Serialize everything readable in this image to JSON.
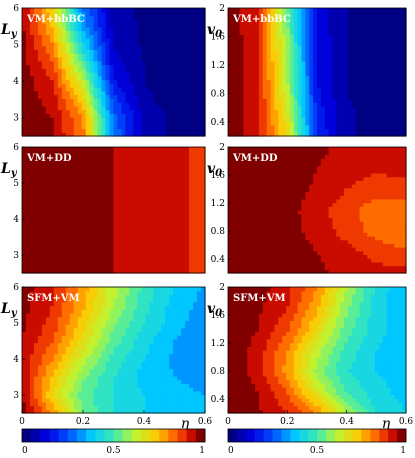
{
  "chart_data": [
    {
      "type": "heatmap",
      "panel": "VM+bbBC",
      "ylabel": "L_y",
      "x": [
        0,
        0.1,
        0.2,
        0.3,
        0.4,
        0.5,
        0.6
      ],
      "y": [
        2.5,
        3,
        3.5,
        4,
        4.5,
        5,
        5.5,
        6
      ],
      "xlim": [
        0,
        0.6
      ],
      "ylim": [
        2.5,
        6
      ],
      "yticks": [
        "3",
        "4",
        "5",
        "6"
      ],
      "z": [
        [
          0.98,
          0.95,
          0.82,
          0.3,
          0.08,
          0.04,
          0.02
        ],
        [
          0.98,
          0.95,
          0.8,
          0.28,
          0.08,
          0.04,
          0.02
        ],
        [
          0.98,
          0.93,
          0.72,
          0.22,
          0.06,
          0.03,
          0.02
        ],
        [
          0.98,
          0.9,
          0.62,
          0.16,
          0.05,
          0.03,
          0.02
        ],
        [
          0.97,
          0.86,
          0.52,
          0.12,
          0.05,
          0.03,
          0.02
        ],
        [
          0.97,
          0.8,
          0.42,
          0.1,
          0.04,
          0.03,
          0.02
        ],
        [
          0.96,
          0.74,
          0.34,
          0.08,
          0.04,
          0.03,
          0.02
        ],
        [
          0.96,
          0.7,
          0.3,
          0.07,
          0.04,
          0.03,
          0.02
        ]
      ]
    },
    {
      "type": "heatmap",
      "panel": "VM+bbBC",
      "ylabel": "v_0",
      "x": [
        0,
        0.1,
        0.2,
        0.3,
        0.4,
        0.5,
        0.6
      ],
      "y": [
        0.2,
        0.5,
        0.8,
        1.1,
        1.4,
        1.7,
        2.0
      ],
      "xlim": [
        0,
        0.6
      ],
      "ylim": [
        0.2,
        2
      ],
      "yticks": [
        "0.4",
        "0.8",
        "1.2",
        "1.6",
        "2"
      ],
      "z": [
        [
          0.99,
          0.92,
          0.7,
          0.2,
          0.06,
          0.03,
          0.02
        ],
        [
          0.99,
          0.92,
          0.66,
          0.18,
          0.06,
          0.03,
          0.02
        ],
        [
          0.99,
          0.92,
          0.62,
          0.16,
          0.05,
          0.03,
          0.02
        ],
        [
          0.99,
          0.91,
          0.6,
          0.15,
          0.05,
          0.03,
          0.02
        ],
        [
          0.99,
          0.91,
          0.58,
          0.15,
          0.05,
          0.03,
          0.02
        ],
        [
          0.99,
          0.9,
          0.56,
          0.14,
          0.05,
          0.03,
          0.02
        ],
        [
          0.99,
          0.9,
          0.55,
          0.14,
          0.05,
          0.03,
          0.02
        ]
      ]
    },
    {
      "type": "heatmap",
      "panel": "VM+DD",
      "ylabel": "L_y",
      "x": [
        0,
        0.1,
        0.2,
        0.3,
        0.4,
        0.5,
        0.6
      ],
      "y": [
        2.5,
        3,
        3.5,
        4,
        4.5,
        5,
        5.5,
        6
      ],
      "xlim": [
        0,
        0.6
      ],
      "ylim": [
        2.5,
        6
      ],
      "yticks": [
        "3",
        "4",
        "5",
        "6"
      ],
      "z": [
        [
          0.99,
          0.98,
          0.97,
          0.95,
          0.93,
          0.91,
          0.89
        ],
        [
          0.99,
          0.98,
          0.97,
          0.95,
          0.93,
          0.91,
          0.89
        ],
        [
          0.99,
          0.98,
          0.97,
          0.95,
          0.93,
          0.91,
          0.89
        ],
        [
          0.99,
          0.98,
          0.97,
          0.95,
          0.93,
          0.91,
          0.89
        ],
        [
          0.99,
          0.98,
          0.97,
          0.95,
          0.93,
          0.91,
          0.89
        ],
        [
          0.99,
          0.98,
          0.97,
          0.95,
          0.93,
          0.91,
          0.89
        ],
        [
          0.99,
          0.98,
          0.97,
          0.95,
          0.93,
          0.91,
          0.89
        ],
        [
          0.99,
          0.98,
          0.97,
          0.95,
          0.93,
          0.91,
          0.89
        ]
      ]
    },
    {
      "type": "heatmap",
      "panel": "VM+DD",
      "ylabel": "v_0",
      "x": [
        0,
        0.1,
        0.2,
        0.3,
        0.4,
        0.5,
        0.6
      ],
      "y": [
        0.2,
        0.5,
        0.8,
        1.1,
        1.4,
        1.7,
        2.0
      ],
      "xlim": [
        0,
        0.6
      ],
      "ylim": [
        0.2,
        2
      ],
      "yticks": [
        "0.4",
        "0.8",
        "1.2",
        "1.6",
        "2"
      ],
      "z": [
        [
          0.99,
          0.99,
          0.98,
          0.96,
          0.94,
          0.92,
          0.92
        ],
        [
          0.99,
          0.99,
          0.98,
          0.95,
          0.92,
          0.88,
          0.86
        ],
        [
          0.99,
          0.99,
          0.97,
          0.93,
          0.88,
          0.83,
          0.8
        ],
        [
          0.99,
          0.99,
          0.97,
          0.92,
          0.87,
          0.82,
          0.82
        ],
        [
          0.99,
          0.99,
          0.98,
          0.94,
          0.9,
          0.87,
          0.88
        ],
        [
          0.99,
          0.99,
          0.98,
          0.95,
          0.93,
          0.91,
          0.92
        ],
        [
          0.99,
          0.99,
          0.98,
          0.96,
          0.94,
          0.92,
          0.93
        ]
      ]
    },
    {
      "type": "heatmap",
      "panel": "SFM+VM",
      "ylabel": "L_y",
      "xlabel": "η",
      "x": [
        0,
        0.1,
        0.2,
        0.3,
        0.4,
        0.5,
        0.6
      ],
      "y": [
        2.5,
        3,
        3.5,
        4,
        4.5,
        5,
        5.5,
        6
      ],
      "xlim": [
        0,
        0.6
      ],
      "ylim": [
        2.5,
        6
      ],
      "xticks": [
        "0",
        "0.2",
        "0.4",
        "0.6"
      ],
      "yticks": [
        "3",
        "4",
        "5",
        "6"
      ],
      "z": [
        [
          0.97,
          0.8,
          0.55,
          0.45,
          0.4,
          0.38,
          0.36
        ],
        [
          0.96,
          0.7,
          0.52,
          0.45,
          0.4,
          0.37,
          0.35
        ],
        [
          0.94,
          0.74,
          0.56,
          0.45,
          0.38,
          0.35,
          0.33
        ],
        [
          0.94,
          0.8,
          0.62,
          0.48,
          0.4,
          0.34,
          0.32
        ],
        [
          0.95,
          0.85,
          0.68,
          0.52,
          0.42,
          0.35,
          0.31
        ],
        [
          0.96,
          0.88,
          0.72,
          0.56,
          0.45,
          0.37,
          0.32
        ],
        [
          0.97,
          0.9,
          0.76,
          0.6,
          0.47,
          0.38,
          0.33
        ],
        [
          0.97,
          0.91,
          0.78,
          0.62,
          0.48,
          0.4,
          0.34
        ]
      ]
    },
    {
      "type": "heatmap",
      "panel": "SFM+VM",
      "ylabel": "v_0",
      "xlabel": "η",
      "x": [
        0,
        0.1,
        0.2,
        0.3,
        0.4,
        0.5,
        0.6
      ],
      "y": [
        0.2,
        0.5,
        0.8,
        1.1,
        1.4,
        1.7,
        2.0
      ],
      "xlim": [
        0,
        0.6
      ],
      "ylim": [
        0.2,
        2
      ],
      "xticks": [
        "0",
        "0.2",
        "0.4",
        "0.6"
      ],
      "yticks": [
        "0.4",
        "0.8",
        "1.2",
        "1.6",
        "2"
      ],
      "z": [
        [
          0.99,
          0.96,
          0.9,
          0.8,
          0.6,
          0.45,
          0.4
        ],
        [
          0.99,
          0.95,
          0.85,
          0.66,
          0.5,
          0.42,
          0.38
        ],
        [
          0.99,
          0.93,
          0.78,
          0.58,
          0.45,
          0.4,
          0.37
        ],
        [
          0.99,
          0.93,
          0.8,
          0.62,
          0.48,
          0.4,
          0.36
        ],
        [
          0.99,
          0.95,
          0.86,
          0.7,
          0.52,
          0.42,
          0.36
        ],
        [
          0.99,
          0.96,
          0.9,
          0.76,
          0.56,
          0.42,
          0.35
        ],
        [
          0.99,
          0.97,
          0.92,
          0.8,
          0.6,
          0.44,
          0.35
        ]
      ]
    }
  ],
  "colorbar": {
    "ticks": [
      "0",
      "0.5",
      "1"
    ],
    "levels": 20
  }
}
